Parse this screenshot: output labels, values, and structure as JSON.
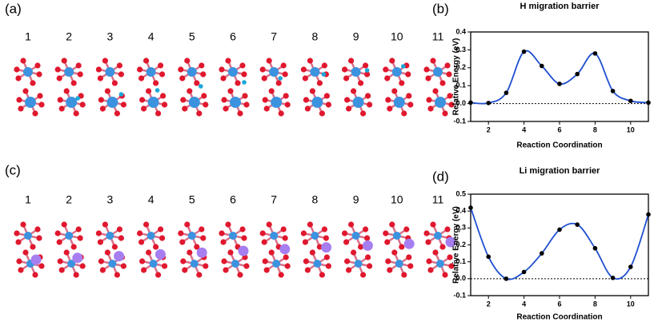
{
  "panels": {
    "a": {
      "label": "(a)",
      "frames": [
        "1",
        "2",
        "3",
        "4",
        "5",
        "6",
        "7",
        "8",
        "9",
        "10",
        "11"
      ]
    },
    "c": {
      "label": "(c)",
      "frames": [
        "1",
        "2",
        "3",
        "4",
        "5",
        "6",
        "7",
        "8",
        "9",
        "10",
        "11"
      ]
    }
  },
  "chart_data": [
    {
      "type": "line",
      "panel_label": "(b)",
      "title": "H migration barrier",
      "xlabel": "Reaction Coordination",
      "ylabel": "Relative Energy (eV)",
      "x": [
        1,
        2,
        3,
        4,
        5,
        6,
        7,
        8,
        9,
        10,
        11
      ],
      "series": [
        {
          "name": "H",
          "color": "#1f4fd0",
          "values": [
            0.005,
            0.003,
            0.06,
            0.29,
            0.21,
            0.11,
            0.165,
            0.28,
            0.07,
            0.015,
            0.005
          ]
        }
      ],
      "xlim": [
        1,
        11
      ],
      "xticks": [
        2,
        4,
        6,
        8,
        10
      ],
      "ylim": [
        -0.1,
        0.4
      ],
      "yticks": [
        -0.1,
        {
          "value": 0,
          "label": "0.0"
        },
        0.1,
        0.2,
        0.3,
        0.4
      ],
      "hline": 0
    },
    {
      "type": "line",
      "panel_label": "(d)",
      "title": "Li migration barrier",
      "xlabel": "Reaction Coordination",
      "ylabel": "Relative Energy (eV)",
      "x": [
        1,
        2,
        3,
        4,
        5,
        6,
        7,
        8,
        9,
        10,
        11
      ],
      "series": [
        {
          "name": "Li",
          "color": "#1f4fd0",
          "values": [
            0.42,
            0.13,
            0.0,
            0.04,
            0.15,
            0.29,
            0.32,
            0.18,
            0.005,
            0.07,
            0.38
          ]
        }
      ],
      "xlim": [
        1,
        11
      ],
      "xticks": [
        2,
        4,
        6,
        8,
        10
      ],
      "ylim": [
        -0.1,
        0.5
      ],
      "yticks": [
        -0.1,
        {
          "value": 0,
          "label": "0.0"
        },
        0.1,
        0.2,
        0.3,
        0.4,
        0.5
      ],
      "hline": 0
    }
  ]
}
